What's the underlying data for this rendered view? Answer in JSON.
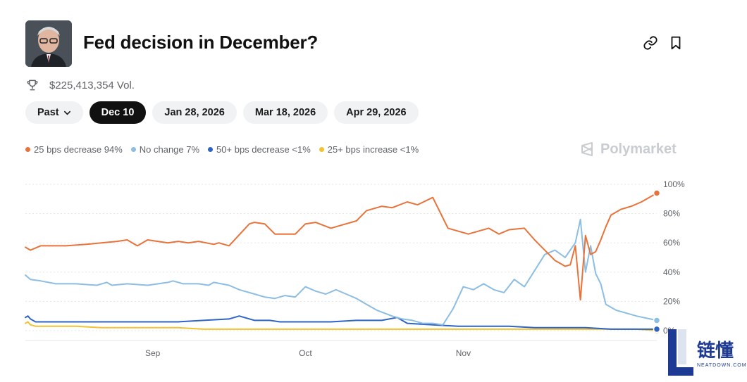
{
  "header": {
    "title": "Fed decision in December?",
    "avatar_alt": "Fed chair portrait"
  },
  "volume": {
    "label": "$225,413,354 Vol."
  },
  "tabs": [
    {
      "label": "Past",
      "active": false,
      "has_chevron": true
    },
    {
      "label": "Dec 10",
      "active": true
    },
    {
      "label": "Jan 28, 2026",
      "active": false
    },
    {
      "label": "Mar 18, 2026",
      "active": false
    },
    {
      "label": "Apr 29, 2026",
      "active": false
    }
  ],
  "legend": [
    {
      "label": "25 bps decrease 94%",
      "color": "#e8733a"
    },
    {
      "label": "No change 7%",
      "color": "#8cbde3"
    },
    {
      "label": "50+ bps decrease <1%",
      "color": "#2f63c4"
    },
    {
      "label": "25+ bps increase <1%",
      "color": "#f1c232"
    }
  ],
  "brand": {
    "name": "Polymarket"
  },
  "watermark": {
    "text": "链懂",
    "sub": "NEATDOWN.COM"
  },
  "chart_data": {
    "type": "line",
    "ylim": [
      0,
      100
    ],
    "y_ticks": [
      "100%",
      "80%",
      "60%",
      "40%",
      "20%",
      "0%"
    ],
    "y_tick_values": [
      100,
      80,
      60,
      40,
      20,
      0
    ],
    "x_ticks": [
      "Sep",
      "Oct",
      "Nov"
    ],
    "x_tick_positions": [
      25,
      55,
      86
    ],
    "x_range": [
      0,
      124
    ],
    "grid": true,
    "series": [
      {
        "name": "25 bps decrease",
        "color": "#e8733a",
        "x": [
          0,
          1,
          3,
          8,
          12,
          18,
          20,
          21,
          22,
          24,
          28,
          30,
          32,
          34,
          37,
          38,
          40,
          44,
          45,
          47,
          49,
          53,
          55,
          57,
          60,
          62,
          65,
          67,
          70,
          72,
          75,
          77,
          80,
          83,
          87,
          88,
          91,
          93,
          95,
          98,
          100,
          104,
          105,
          106,
          107,
          108,
          109,
          110,
          111,
          112,
          113,
          114,
          115,
          117,
          119,
          121,
          124
        ],
        "values": [
          57,
          55,
          58,
          58,
          59,
          61,
          62,
          60,
          58,
          62,
          60,
          61,
          60,
          61,
          59,
          60,
          58,
          73,
          74,
          73,
          66,
          66,
          73,
          74,
          70,
          72,
          75,
          82,
          85,
          84,
          88,
          86,
          91,
          70,
          66,
          67,
          70,
          66,
          69,
          70,
          62,
          48,
          46,
          44,
          45,
          58,
          21,
          65,
          52,
          54,
          62,
          71,
          79,
          83,
          85,
          88,
          94
        ]
      },
      {
        "name": "No change",
        "color": "#8cbde3",
        "x": [
          0,
          1,
          3,
          6,
          10,
          14,
          15,
          16,
          17,
          20,
          24,
          28,
          29,
          31,
          34,
          36,
          37,
          40,
          42,
          45,
          47,
          49,
          51,
          53,
          55,
          57,
          59,
          61,
          63,
          65,
          67,
          69,
          72,
          74,
          76,
          78,
          80,
          82,
          84,
          86,
          88,
          90,
          92,
          94,
          96,
          98,
          100,
          102,
          104,
          106,
          108,
          109,
          110,
          111,
          112,
          113,
          114,
          116,
          118,
          120,
          124
        ],
        "values": [
          38,
          35,
          34,
          32,
          32,
          31,
          32,
          33,
          31,
          32,
          31,
          33,
          34,
          32,
          32,
          31,
          33,
          31,
          28,
          25,
          23,
          22,
          24,
          23,
          30,
          27,
          25,
          28,
          25,
          22,
          18,
          14,
          10,
          8,
          7,
          5,
          5,
          4,
          15,
          30,
          28,
          32,
          28,
          26,
          35,
          30,
          41,
          52,
          55,
          50,
          60,
          76,
          40,
          58,
          39,
          32,
          18,
          14,
          12,
          10,
          7
        ]
      },
      {
        "name": "50+ bps decrease",
        "color": "#2f63c4",
        "x": [
          0,
          0.5,
          1,
          2,
          5,
          10,
          15,
          20,
          25,
          30,
          35,
          40,
          42,
          45,
          48,
          50,
          55,
          60,
          65,
          70,
          73,
          75,
          80,
          85,
          90,
          95,
          100,
          105,
          110,
          115,
          120,
          124
        ],
        "values": [
          9,
          10,
          8,
          6,
          6,
          6,
          6,
          6,
          6,
          6,
          7,
          8,
          10,
          7,
          7,
          6,
          6,
          6,
          7,
          7,
          9,
          5,
          4,
          3,
          3,
          3,
          2,
          2,
          2,
          1,
          1,
          1
        ]
      },
      {
        "name": "25+ bps increase",
        "color": "#f1c232",
        "x": [
          0,
          0.5,
          1,
          2,
          5,
          10,
          15,
          20,
          25,
          30,
          35,
          40,
          45,
          50,
          55,
          60,
          65,
          70,
          75,
          80,
          85,
          90,
          95,
          100,
          105,
          110,
          115,
          120,
          124
        ],
        "values": [
          5,
          6,
          4,
          3,
          3,
          3,
          2,
          2,
          2,
          2,
          1,
          1,
          1,
          1,
          1,
          1,
          1,
          1,
          1,
          1,
          1,
          1,
          1,
          1,
          1,
          1,
          1,
          1,
          0
        ]
      }
    ]
  }
}
